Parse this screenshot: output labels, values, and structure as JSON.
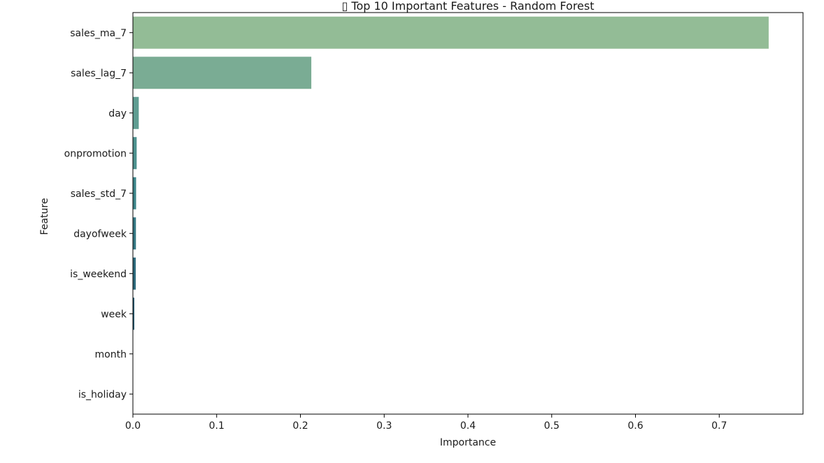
{
  "chart_data": {
    "type": "bar",
    "orientation": "horizontal",
    "title": "▯ Top 10 Important Features - Random Forest",
    "xlabel": "Importance",
    "ylabel": "Feature",
    "xlim": [
      0,
      0.8
    ],
    "x_ticks": [
      0.0,
      0.1,
      0.2,
      0.3,
      0.4,
      0.5,
      0.6,
      0.7
    ],
    "x_tick_labels": [
      "0.0",
      "0.1",
      "0.2",
      "0.3",
      "0.4",
      "0.5",
      "0.6",
      "0.7"
    ],
    "grid": false,
    "legend": "none",
    "categories": [
      "sales_ma_7",
      "sales_lag_7",
      "day",
      "onpromotion",
      "sales_std_7",
      "dayofweek",
      "is_weekend",
      "week",
      "month",
      "is_holiday"
    ],
    "values": [
      0.759,
      0.213,
      0.007,
      0.0045,
      0.0038,
      0.0036,
      0.0034,
      0.0017,
      0.0003,
      0.0001
    ],
    "colors": [
      "#93bc96",
      "#7aac94",
      "#5f9d92",
      "#4e928f",
      "#3c8589",
      "#347783",
      "#2d6a7c",
      "#275b72",
      "#2a4a64",
      "#2c3c55"
    ]
  }
}
